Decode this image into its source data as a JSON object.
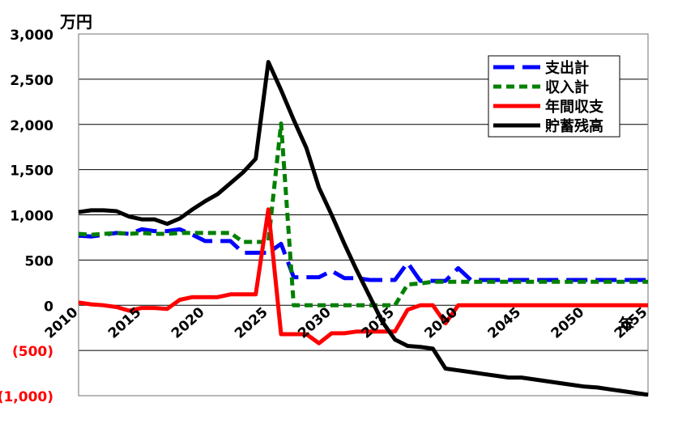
{
  "chart_data": {
    "type": "line",
    "y_unit_label": "万円",
    "x_unit_label": "年",
    "xlim": [
      2010,
      2055
    ],
    "ylim": [
      -1000,
      3000
    ],
    "grid": true,
    "legend_position": "top-right",
    "x_ticks": [
      "2010",
      "2015",
      "2020",
      "2025",
      "2030",
      "2035",
      "2040",
      "2045",
      "2050",
      "2055"
    ],
    "y_ticks": [
      {
        "value": 3000,
        "label": "3,000",
        "color": "#000000"
      },
      {
        "value": 2500,
        "label": "2,500",
        "color": "#000000"
      },
      {
        "value": 2000,
        "label": "2,000",
        "color": "#000000"
      },
      {
        "value": 1500,
        "label": "1,500",
        "color": "#000000"
      },
      {
        "value": 1000,
        "label": "1,000",
        "color": "#000000"
      },
      {
        "value": 500,
        "label": "500",
        "color": "#000000"
      },
      {
        "value": 0,
        "label": "0",
        "color": "#000000"
      },
      {
        "value": -500,
        "label": "(500)",
        "color": "#ff0000"
      },
      {
        "value": -1000,
        "label": "(1,000)",
        "color": "#ff0000"
      }
    ],
    "x": [
      2010,
      2011,
      2012,
      2013,
      2014,
      2015,
      2016,
      2017,
      2018,
      2019,
      2020,
      2021,
      2022,
      2023,
      2024,
      2025,
      2026,
      2027,
      2028,
      2029,
      2030,
      2031,
      2032,
      2033,
      2034,
      2035,
      2036,
      2037,
      2038,
      2039,
      2040,
      2041,
      2042,
      2043,
      2044,
      2045,
      2046,
      2047,
      2048,
      2049,
      2050,
      2051,
      2052,
      2053,
      2054,
      2055
    ],
    "series": [
      {
        "name": "支出計",
        "color": "#0000ff",
        "dash": "long-dash",
        "values": [
          770,
          760,
          780,
          800,
          790,
          840,
          820,
          820,
          840,
          780,
          710,
          710,
          710,
          580,
          580,
          580,
          680,
          310,
          310,
          310,
          380,
          300,
          300,
          280,
          280,
          280,
          470,
          270,
          270,
          270,
          410,
          280,
          280,
          280,
          280,
          280,
          280,
          280,
          280,
          280,
          280,
          280,
          280,
          280,
          280,
          280
        ]
      },
      {
        "name": "収入計",
        "color": "#008000",
        "dash": "short-dash",
        "values": [
          790,
          780,
          790,
          800,
          790,
          800,
          790,
          790,
          800,
          800,
          800,
          800,
          800,
          700,
          700,
          700,
          2010,
          0,
          0,
          0,
          0,
          0,
          0,
          0,
          0,
          0,
          230,
          240,
          260,
          260,
          260,
          260,
          260,
          260,
          260,
          260,
          260,
          260,
          260,
          260,
          260,
          260,
          260,
          260,
          260,
          260
        ]
      },
      {
        "name": "年間収支",
        "color": "#ff0000",
        "dash": "solid",
        "values": [
          30,
          10,
          0,
          -20,
          -60,
          -30,
          -30,
          -40,
          60,
          90,
          90,
          90,
          120,
          120,
          120,
          1060,
          -320,
          -320,
          -320,
          -420,
          -310,
          -310,
          -290,
          -290,
          -290,
          -290,
          -50,
          0,
          0,
          -200,
          0,
          0,
          0,
          0,
          0,
          0,
          0,
          0,
          0,
          0,
          0,
          0,
          0,
          0,
          0,
          0
        ]
      },
      {
        "name": "貯蓄残高",
        "color": "#000000",
        "dash": "solid",
        "values": [
          1030,
          1050,
          1050,
          1040,
          980,
          950,
          950,
          900,
          960,
          1060,
          1150,
          1230,
          1350,
          1470,
          1620,
          2690,
          2380,
          2050,
          1740,
          1300,
          1000,
          680,
          380,
          100,
          -180,
          -380,
          -450,
          -460,
          -480,
          -700,
          -720,
          -740,
          -760,
          -780,
          -800,
          -800,
          -820,
          -840,
          -860,
          -880,
          -900,
          -910,
          -930,
          -950,
          -970,
          -990
        ]
      }
    ]
  }
}
